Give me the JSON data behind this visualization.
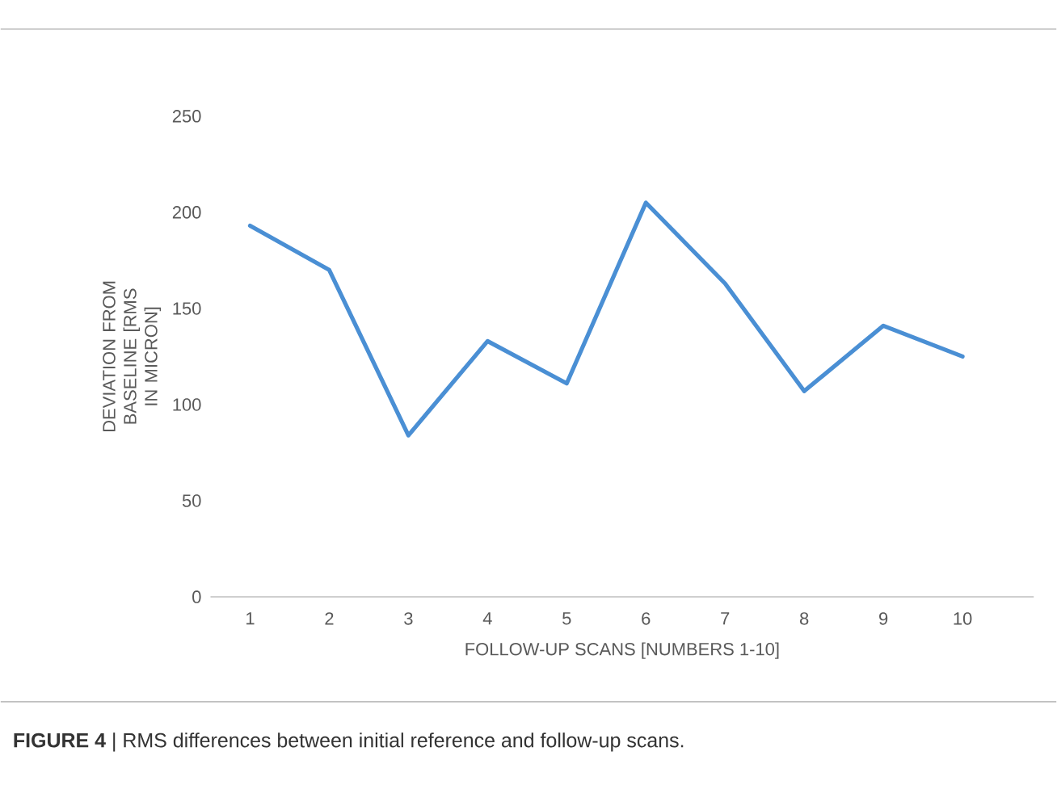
{
  "chart_data": {
    "type": "line",
    "xlabel": "FOLLOW-UP SCANS [NUMBERS 1-10]",
    "ylabel": "DEVIATION FROM BASELINE [RMS IN MICRON]",
    "categories": [
      "1",
      "2",
      "3",
      "4",
      "5",
      "6",
      "7",
      "8",
      "9",
      "10"
    ],
    "values": [
      193,
      170,
      84,
      133,
      111,
      205,
      163,
      107,
      141,
      125
    ],
    "color": "#4a8fd4",
    "ylim": [
      0,
      250
    ],
    "yticks": [
      0,
      50,
      100,
      150,
      200,
      250
    ],
    "grid": false,
    "marker": "none",
    "line_style": "solid",
    "annotations": [
      "**FIGURE 4** | RMS differences between initial reference and follow-up scans."
    ]
  }
}
